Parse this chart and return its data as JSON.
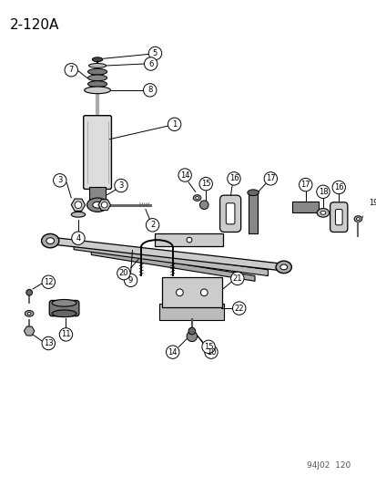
{
  "title": "2-120A",
  "footer": "94J02  120",
  "bg_color": "#ffffff",
  "title_fontsize": 11,
  "footer_fontsize": 6.5,
  "figsize": [
    4.14,
    5.33
  ],
  "dpi": 100
}
